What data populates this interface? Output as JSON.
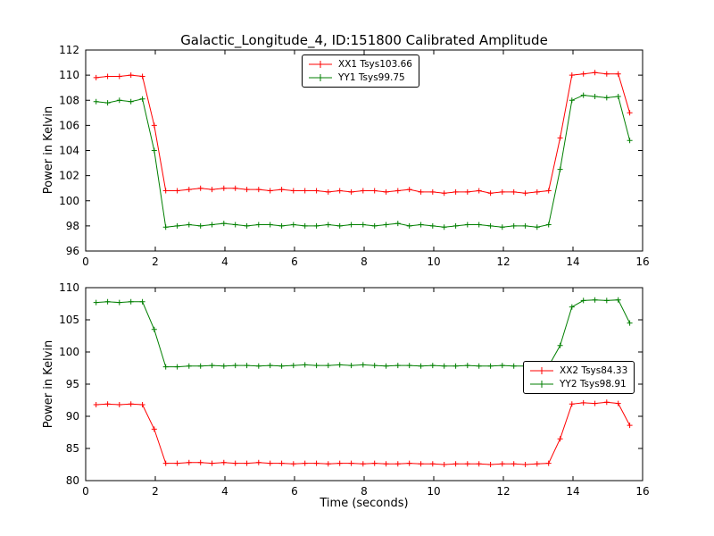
{
  "title": "Galactic_Longitude_4, ID:151800 Calibrated Amplitude",
  "xlabel": "Time (seconds)",
  "chart_data": [
    {
      "type": "line",
      "ylabel": "Power in Kelvin",
      "xlim": [
        0,
        16
      ],
      "ylim": [
        96,
        112
      ],
      "xticks": [
        0,
        2,
        4,
        6,
        8,
        10,
        12,
        14,
        16
      ],
      "yticks": [
        96,
        98,
        100,
        102,
        104,
        106,
        108,
        110,
        112
      ],
      "grid": false,
      "legend_position": "upper center",
      "marker": "+",
      "x": [
        0.3,
        0.63,
        0.97,
        1.3,
        1.63,
        1.97,
        2.3,
        2.63,
        2.97,
        3.3,
        3.63,
        3.97,
        4.3,
        4.63,
        4.97,
        5.3,
        5.63,
        5.97,
        6.3,
        6.63,
        6.97,
        7.3,
        7.63,
        7.97,
        8.3,
        8.63,
        8.97,
        9.3,
        9.63,
        9.97,
        10.3,
        10.63,
        10.97,
        11.3,
        11.63,
        11.97,
        12.3,
        12.63,
        12.97,
        13.3,
        13.63,
        13.97,
        14.3,
        14.63,
        14.97,
        15.3,
        15.63
      ],
      "series": [
        {
          "name": "XX1 Tsys103.66",
          "color": "#ff0000",
          "values": [
            109.8,
            109.9,
            109.9,
            110.0,
            109.9,
            106.0,
            100.8,
            100.8,
            100.9,
            101.0,
            100.9,
            101.0,
            101.0,
            100.9,
            100.9,
            100.8,
            100.9,
            100.8,
            100.8,
            100.8,
            100.7,
            100.8,
            100.7,
            100.8,
            100.8,
            100.7,
            100.8,
            100.9,
            100.7,
            100.7,
            100.6,
            100.7,
            100.7,
            100.8,
            100.6,
            100.7,
            100.7,
            100.6,
            100.7,
            100.8,
            105.0,
            110.0,
            110.1,
            110.2,
            110.1,
            110.1,
            107.0
          ]
        },
        {
          "name": "YY1 Tsys99.75",
          "color": "#007f00",
          "values": [
            107.9,
            107.8,
            108.0,
            107.9,
            108.1,
            104.0,
            97.9,
            98.0,
            98.1,
            98.0,
            98.1,
            98.2,
            98.1,
            98.0,
            98.1,
            98.1,
            98.0,
            98.1,
            98.0,
            98.0,
            98.1,
            98.0,
            98.1,
            98.1,
            98.0,
            98.1,
            98.2,
            98.0,
            98.1,
            98.0,
            97.9,
            98.0,
            98.1,
            98.1,
            98.0,
            97.9,
            98.0,
            98.0,
            97.9,
            98.1,
            102.5,
            108.0,
            108.4,
            108.3,
            108.2,
            108.3,
            104.8
          ]
        }
      ]
    },
    {
      "type": "line",
      "ylabel": "Power in Kelvin",
      "xlim": [
        0,
        16
      ],
      "ylim": [
        80,
        110
      ],
      "xticks": [
        0,
        2,
        4,
        6,
        8,
        10,
        12,
        14,
        16
      ],
      "yticks": [
        80,
        85,
        90,
        95,
        100,
        105,
        110
      ],
      "grid": false,
      "legend_position": "center right",
      "marker": "+",
      "x": [
        0.3,
        0.63,
        0.97,
        1.3,
        1.63,
        1.97,
        2.3,
        2.63,
        2.97,
        3.3,
        3.63,
        3.97,
        4.3,
        4.63,
        4.97,
        5.3,
        5.63,
        5.97,
        6.3,
        6.63,
        6.97,
        7.3,
        7.63,
        7.97,
        8.3,
        8.63,
        8.97,
        9.3,
        9.63,
        9.97,
        10.3,
        10.63,
        10.97,
        11.3,
        11.63,
        11.97,
        12.3,
        12.63,
        12.97,
        13.3,
        13.63,
        13.97,
        14.3,
        14.63,
        14.97,
        15.3,
        15.63
      ],
      "series": [
        {
          "name": "XX2 Tsys84.33",
          "color": "#ff0000",
          "values": [
            91.8,
            91.9,
            91.8,
            91.9,
            91.8,
            88.0,
            82.7,
            82.7,
            82.8,
            82.8,
            82.7,
            82.8,
            82.7,
            82.7,
            82.8,
            82.7,
            82.7,
            82.6,
            82.7,
            82.7,
            82.6,
            82.7,
            82.7,
            82.6,
            82.7,
            82.6,
            82.6,
            82.7,
            82.6,
            82.6,
            82.5,
            82.6,
            82.6,
            82.6,
            82.5,
            82.6,
            82.6,
            82.5,
            82.6,
            82.7,
            86.5,
            91.9,
            92.1,
            92.0,
            92.2,
            92.0,
            88.6
          ]
        },
        {
          "name": "YY2 Tsys98.91",
          "color": "#007f00",
          "values": [
            107.7,
            107.8,
            107.7,
            107.8,
            107.8,
            103.5,
            97.7,
            97.7,
            97.8,
            97.8,
            97.9,
            97.8,
            97.9,
            97.9,
            97.8,
            97.9,
            97.8,
            97.9,
            98.0,
            97.9,
            97.9,
            98.0,
            97.9,
            98.0,
            97.9,
            97.8,
            97.9,
            97.9,
            97.8,
            97.9,
            97.8,
            97.8,
            97.9,
            97.8,
            97.8,
            97.9,
            97.8,
            97.8,
            97.7,
            97.8,
            101.0,
            107.0,
            108.0,
            108.1,
            108.0,
            108.1,
            104.5
          ]
        }
      ]
    }
  ]
}
